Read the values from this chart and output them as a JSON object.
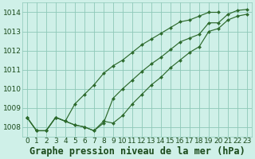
{
  "background_color": "#cff0e8",
  "plot_bg_color": "#cff0e8",
  "line_color": "#2d6a2d",
  "marker_color": "#2d6a2d",
  "xlabel": "Graphe pression niveau de la mer (hPa)",
  "ylim": [
    1007.5,
    1014.5
  ],
  "xlim": [
    -0.5,
    23.5
  ],
  "yticks": [
    1008,
    1009,
    1010,
    1011,
    1012,
    1013,
    1014
  ],
  "xticks": [
    0,
    1,
    2,
    3,
    4,
    5,
    6,
    7,
    8,
    9,
    10,
    11,
    12,
    13,
    14,
    15,
    16,
    17,
    18,
    19,
    20,
    21,
    22,
    23
  ],
  "series": [
    [
      1008.5,
      1007.8,
      1007.8,
      1008.5,
      1008.3,
      1009.2,
      1009.7,
      1010.2,
      1010.8,
      1011.2,
      1011.5,
      1011.9,
      1012.3,
      1012.6,
      1012.9,
      1013.2,
      1013.5,
      1013.6,
      1013.8,
      1014.0,
      1014.0
    ],
    [
      1008.5,
      1007.8,
      1007.8,
      1008.5,
      1008.3,
      1008.1,
      1008.0,
      1007.8,
      1008.2,
      1009.5,
      1010.0,
      1010.45,
      1010.9,
      1011.3,
      1011.65,
      1012.05,
      1012.45,
      1012.65,
      1012.85,
      1013.45,
      1013.45,
      1013.9,
      1014.1,
      1014.15
    ],
    [
      1008.5,
      1007.8,
      1007.8,
      1008.5,
      1008.3,
      1008.1,
      1008.0,
      1007.8,
      1008.3,
      1008.2,
      1008.6,
      1009.2,
      1009.7,
      1010.2,
      1010.6,
      1011.1,
      1011.5,
      1011.9,
      1012.2,
      1013.0,
      1013.15,
      1013.6,
      1013.8,
      1013.9
    ]
  ],
  "grid_color": "#8ec8b8",
  "title_fontsize": 8.5,
  "tick_fontsize": 6.5,
  "label_color": "#1a4a1a"
}
